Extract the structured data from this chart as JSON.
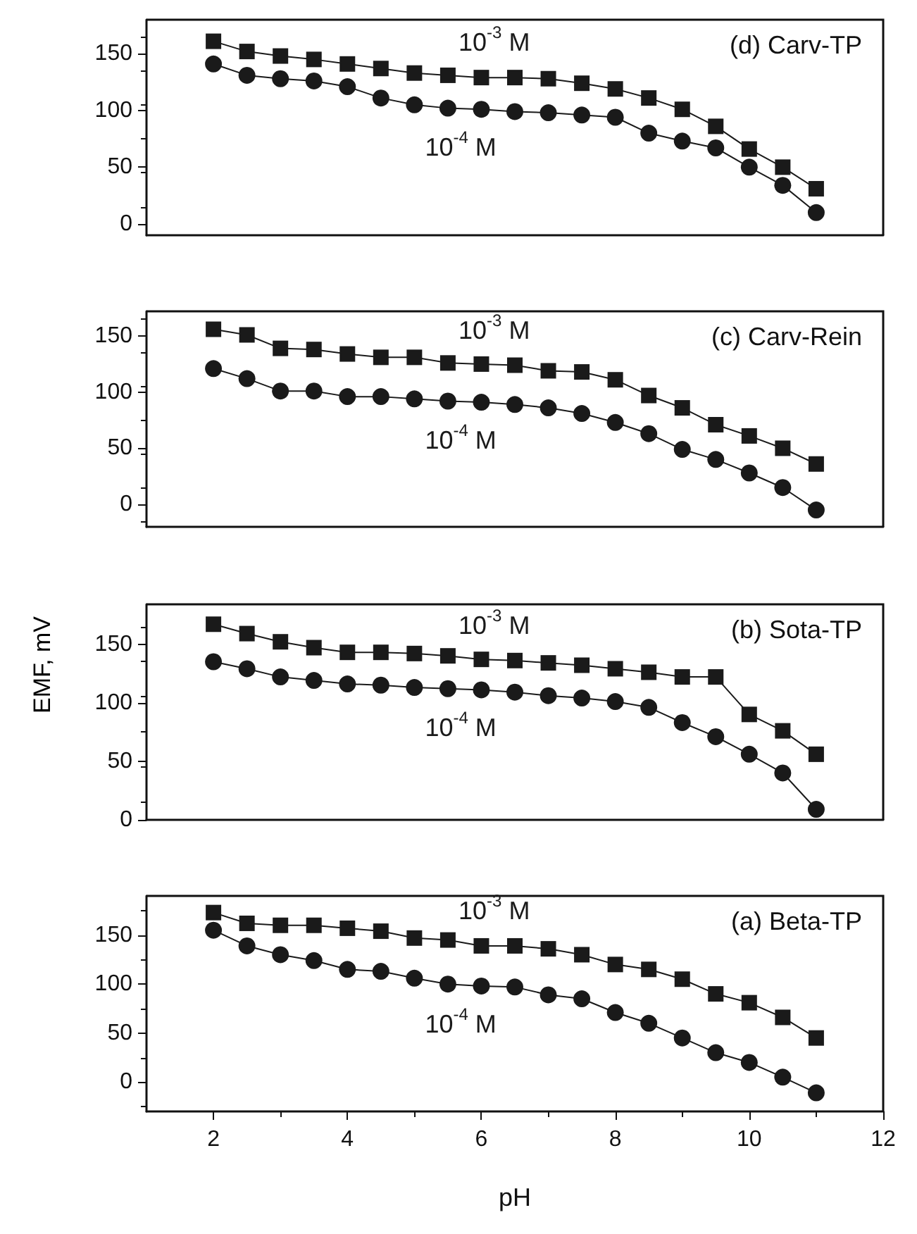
{
  "chart_data": [
    {
      "type": "line",
      "title": "(d) Carv-TP",
      "x": [
        2,
        2.5,
        3,
        3.5,
        4,
        4.5,
        5,
        5.5,
        6,
        6.5,
        7,
        7.5,
        8,
        8.5,
        9,
        9.5,
        10,
        10.5,
        11
      ],
      "xlim": [
        1,
        12
      ],
      "xticks": [
        2,
        4,
        6,
        8,
        10,
        12
      ],
      "ylim": [
        -10,
        180
      ],
      "yticks": [
        0,
        50,
        100,
        150
      ],
      "tick_labels": "y",
      "grid": false,
      "legend": false,
      "line_style": "solid",
      "series": [
        {
          "name": "10$^{-3}$ M",
          "color": "#1a1a1a",
          "marker": "square",
          "values": [
            161,
            152,
            148,
            145,
            141,
            137,
            133,
            131,
            129,
            129,
            128,
            124,
            119,
            111,
            101,
            86,
            66,
            50,
            31
          ]
        },
        {
          "name": "10$^{-4}$ M",
          "color": "#1a1a1a",
          "marker": "circle",
          "values": [
            141,
            131,
            128,
            126,
            121,
            111,
            105,
            102,
            101,
            99,
            98,
            96,
            94,
            80,
            73,
            67,
            50,
            34,
            10
          ]
        }
      ]
    },
    {
      "type": "line",
      "title": "(c) Carv-Rein",
      "x": [
        2,
        2.5,
        3,
        3.5,
        4,
        4.5,
        5,
        5.5,
        6,
        6.5,
        7,
        7.5,
        8,
        8.5,
        9,
        9.5,
        10,
        10.5,
        11
      ],
      "xlim": [
        1,
        12
      ],
      "xticks": [
        2,
        4,
        6,
        8,
        10,
        12
      ],
      "ylim": [
        -20,
        172
      ],
      "yticks": [
        0,
        50,
        100,
        150
      ],
      "tick_labels": "y",
      "grid": false,
      "legend": false,
      "line_style": "solid",
      "series": [
        {
          "name": "10$^{-3}$ M",
          "color": "#1a1a1a",
          "marker": "square",
          "values": [
            156,
            151,
            139,
            138,
            134,
            131,
            131,
            126,
            125,
            124,
            119,
            118,
            111,
            97,
            86,
            71,
            61,
            50,
            36
          ]
        },
        {
          "name": "10$^{-4}$ M",
          "color": "#1a1a1a",
          "marker": "circle",
          "values": [
            121,
            112,
            101,
            101,
            96,
            96,
            94,
            92,
            91,
            89,
            86,
            81,
            73,
            63,
            49,
            40,
            28,
            15,
            -5
          ]
        }
      ]
    },
    {
      "type": "line",
      "title": "(b) Sota-TP",
      "ylabel": "EMF, mV",
      "x": [
        2,
        2.5,
        3,
        3.5,
        4,
        4.5,
        5,
        5.5,
        6,
        6.5,
        7,
        7.5,
        8,
        8.5,
        9,
        9.5,
        10,
        10.5,
        11
      ],
      "xlim": [
        1,
        12
      ],
      "xticks": [
        2,
        4,
        6,
        8,
        10,
        12
      ],
      "ylim": [
        0,
        184
      ],
      "yticks": [
        0,
        50,
        100,
        150
      ],
      "tick_labels": "y",
      "grid": false,
      "legend": false,
      "line_style": "solid",
      "series": [
        {
          "name": "10$^{-3}$ M",
          "color": "#1a1a1a",
          "marker": "square",
          "values": [
            167,
            159,
            152,
            147,
            143,
            143,
            142,
            140,
            137,
            136,
            134,
            132,
            129,
            126,
            122,
            122,
            90,
            76,
            56
          ]
        },
        {
          "name": "10$^{-4}$ M",
          "color": "#1a1a1a",
          "marker": "circle",
          "values": [
            135,
            129,
            122,
            119,
            116,
            115,
            113,
            112,
            111,
            109,
            106,
            104,
            101,
            96,
            83,
            71,
            56,
            40,
            9
          ]
        }
      ]
    },
    {
      "type": "line",
      "title": "(a) Beta-TP",
      "xlabel": "pH",
      "x": [
        2,
        2.5,
        3,
        3.5,
        4,
        4.5,
        5,
        5.5,
        6,
        6.5,
        7,
        7.5,
        8,
        8.5,
        9,
        9.5,
        10,
        10.5,
        11
      ],
      "xlim": [
        1,
        12
      ],
      "xticks": [
        2,
        4,
        6,
        8,
        10,
        12
      ],
      "ylim": [
        -30,
        190
      ],
      "yticks": [
        0,
        50,
        100,
        150
      ],
      "grid": false,
      "legend": false,
      "line_style": "solid",
      "series": [
        {
          "name": "10$^{-3}$ M",
          "color": "#1a1a1a",
          "marker": "square",
          "values": [
            173,
            162,
            160,
            160,
            157,
            154,
            147,
            145,
            139,
            139,
            136,
            130,
            120,
            115,
            105,
            90,
            81,
            66,
            45
          ]
        },
        {
          "name": "10$^{-4}$ M",
          "color": "#1a1a1a",
          "marker": "circle",
          "values": [
            155,
            139,
            130,
            124,
            115,
            113,
            106,
            100,
            98,
            97,
            89,
            85,
            71,
            60,
            45,
            30,
            20,
            5,
            -11
          ]
        }
      ]
    }
  ]
}
